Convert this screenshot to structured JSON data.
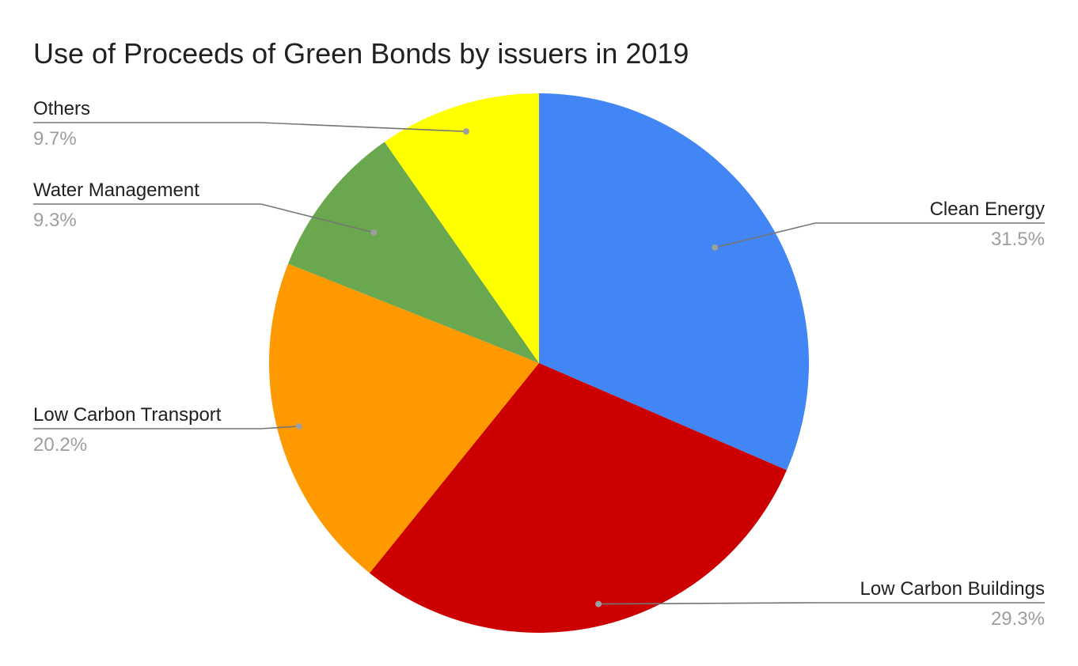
{
  "chart_data": {
    "type": "pie",
    "title": "Use of Proceeds of Green Bonds by issuers in 2019",
    "slices": [
      {
        "label": "Clean Energy",
        "value": 31.5,
        "pct_label": "31.5%",
        "color": "#4285f4"
      },
      {
        "label": "Low Carbon Buildings",
        "value": 29.3,
        "pct_label": "29.3%",
        "color": "#cc0000"
      },
      {
        "label": "Low Carbon Transport",
        "value": 20.2,
        "pct_label": "20.2%",
        "color": "#ff9900"
      },
      {
        "label": "Water Management",
        "value": 9.3,
        "pct_label": "9.3%",
        "color": "#6aa84f"
      },
      {
        "label": "Others",
        "value": 9.7,
        "pct_label": "9.7%",
        "color": "#ffff00"
      }
    ],
    "start_angle": "top",
    "direction": "clockwise",
    "legend": "none"
  }
}
